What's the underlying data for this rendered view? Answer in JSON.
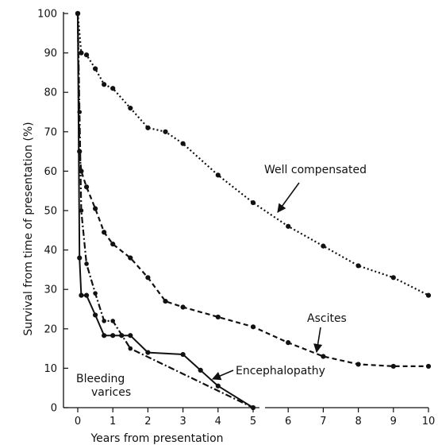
{
  "chart_data": {
    "type": "line",
    "title": "",
    "xlabel": "Years from presentation",
    "ylabel": "Survival from time of presentation (%)",
    "xlim": [
      0,
      10
    ],
    "ylim": [
      0,
      100
    ],
    "x_ticks": [
      "0",
      "1",
      "2",
      "3",
      "4",
      "5",
      "6",
      "7",
      "8",
      "9",
      "10"
    ],
    "y_ticks": [
      "0",
      "10",
      "20",
      "30",
      "40",
      "50",
      "60",
      "70",
      "80",
      "90",
      "100"
    ],
    "grid": false,
    "series": [
      {
        "name": "Well compensated",
        "style": "dotted",
        "x": [
          0,
          0.1,
          0.25,
          0.5,
          0.75,
          1,
          1.5,
          2,
          2.5,
          3,
          4,
          5,
          6,
          7,
          8,
          9,
          10
        ],
        "y": [
          100,
          90,
          89.5,
          86,
          82,
          81,
          76,
          71,
          70,
          67,
          59,
          52,
          46,
          41,
          36,
          33,
          28.5
        ]
      },
      {
        "name": "Ascites",
        "style": "dashed",
        "x": [
          0,
          0.05,
          0.1,
          0.25,
          0.5,
          0.75,
          1,
          1.5,
          2,
          2.5,
          3,
          4,
          5,
          6,
          7,
          8,
          9,
          10
        ],
        "y": [
          100,
          65,
          60,
          56,
          50.5,
          44.5,
          41.5,
          38,
          33,
          27,
          25.5,
          23,
          20.5,
          16.5,
          13,
          11,
          10.5,
          10.5
        ]
      },
      {
        "name": "Encephalopathy",
        "style": "solid",
        "x": [
          0,
          0.05,
          0.1,
          0.25,
          0.5,
          0.75,
          1,
          1.25,
          1.5,
          2,
          3,
          3.5,
          4,
          5
        ],
        "y": [
          100,
          38,
          28.5,
          28.5,
          23.5,
          18.3,
          18.3,
          18.3,
          18.3,
          14,
          13.5,
          9.5,
          5.5,
          0
        ]
      },
      {
        "name": "Bleeding varices",
        "style": "dash-dot",
        "x": [
          0,
          0.05,
          0.1,
          0.25,
          0.5,
          0.75,
          1,
          1.5,
          5
        ],
        "y": [
          100,
          75,
          50,
          36.5,
          29,
          22,
          22,
          15,
          0
        ]
      }
    ],
    "annotations": {
      "well_compensated": "Well compensated",
      "ascites": "Ascites",
      "encephalopathy": "Encephalopathy",
      "bleeding_line1": "Bleeding",
      "bleeding_line2": "varices"
    }
  }
}
